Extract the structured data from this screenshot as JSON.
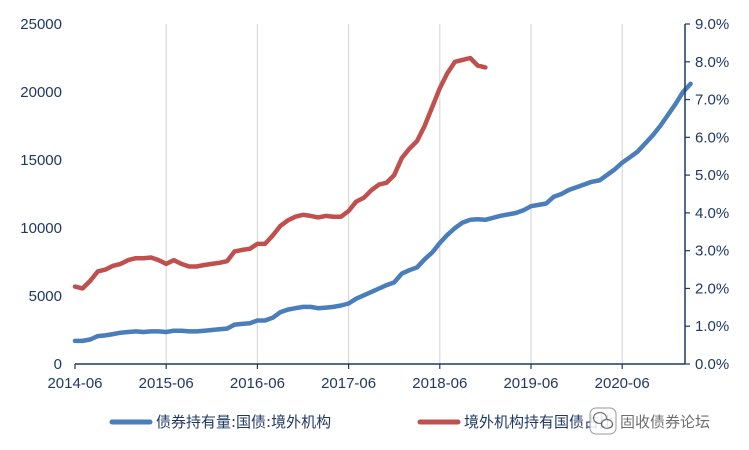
{
  "chart_data": {
    "type": "line",
    "x_ticks": [
      "2014-06",
      "2015-06",
      "2016-06",
      "2017-06",
      "2018-06",
      "2019-06",
      "2020-06"
    ],
    "y_left": {
      "min": 0,
      "max": 25000,
      "ticks": [
        "0",
        "5000",
        "10000",
        "15000",
        "20000",
        "25000"
      ]
    },
    "y_right": {
      "min": 0,
      "max": 0.09,
      "ticks": [
        "0.0%",
        "1.0%",
        "2.0%",
        "3.0%",
        "4.0%",
        "5.0%",
        "6.0%",
        "7.0%",
        "8.0%",
        "9.0%"
      ]
    },
    "grid": "vertical",
    "legend_position": "bottom",
    "series": [
      {
        "name": "债券持有量:国债:境外机构",
        "axis": "left",
        "color": "#4a7ebb",
        "x": [
          "2014-06",
          "2014-07",
          "2014-08",
          "2014-09",
          "2014-10",
          "2014-11",
          "2014-12",
          "2015-01",
          "2015-02",
          "2015-03",
          "2015-04",
          "2015-05",
          "2015-06",
          "2015-07",
          "2015-08",
          "2015-09",
          "2015-10",
          "2015-11",
          "2015-12",
          "2016-01",
          "2016-02",
          "2016-03",
          "2016-04",
          "2016-05",
          "2016-06",
          "2016-07",
          "2016-08",
          "2016-09",
          "2016-10",
          "2016-11",
          "2016-12",
          "2017-01",
          "2017-02",
          "2017-03",
          "2017-04",
          "2017-05",
          "2017-06",
          "2017-07",
          "2017-08",
          "2017-09",
          "2017-10",
          "2017-11",
          "2017-12",
          "2018-01",
          "2018-02",
          "2018-03",
          "2018-04",
          "2018-05",
          "2018-06",
          "2018-07",
          "2018-08",
          "2018-09",
          "2018-10",
          "2018-11",
          "2018-12",
          "2019-01",
          "2019-02",
          "2019-03",
          "2019-04",
          "2019-05",
          "2019-06",
          "2019-07",
          "2019-08",
          "2019-09",
          "2019-10",
          "2019-11",
          "2019-12",
          "2020-01",
          "2020-02",
          "2020-03",
          "2020-04",
          "2020-05",
          "2020-06",
          "2020-07",
          "2020-08",
          "2020-09",
          "2020-10",
          "2020-11",
          "2020-12",
          "2021-01",
          "2021-02",
          "2021-03"
        ],
        "values": [
          1700,
          1700,
          1800,
          2050,
          2100,
          2200,
          2300,
          2350,
          2400,
          2350,
          2400,
          2400,
          2350,
          2450,
          2450,
          2400,
          2400,
          2450,
          2500,
          2550,
          2600,
          2900,
          2950,
          3000,
          3200,
          3200,
          3400,
          3800,
          4000,
          4100,
          4200,
          4200,
          4100,
          4150,
          4200,
          4300,
          4450,
          4800,
          5050,
          5300,
          5550,
          5800,
          6000,
          6650,
          6900,
          7100,
          7700,
          8200,
          8900,
          9500,
          10000,
          10400,
          10600,
          10650,
          10600,
          10750,
          10900,
          11000,
          11100,
          11300,
          11600,
          11700,
          11800,
          12300,
          12500,
          12800,
          13000,
          13200,
          13400,
          13500,
          13900,
          14300,
          14800,
          15200,
          15600,
          16200,
          16800,
          17500,
          18300,
          19100,
          20000,
          20600
        ]
      },
      {
        "name": "境外机构持有国债占比",
        "axis": "right",
        "color": "#c0504d",
        "x": [
          "2014-06",
          "2014-07",
          "2014-08",
          "2014-09",
          "2014-10",
          "2014-11",
          "2014-12",
          "2015-01",
          "2015-02",
          "2015-03",
          "2015-04",
          "2015-05",
          "2015-06",
          "2015-07",
          "2015-08",
          "2015-09",
          "2015-10",
          "2015-11",
          "2015-12",
          "2016-01",
          "2016-02",
          "2016-03",
          "2016-04",
          "2016-05",
          "2016-06",
          "2016-07",
          "2016-08",
          "2016-09",
          "2016-10",
          "2016-11",
          "2016-12",
          "2017-01",
          "2017-02",
          "2017-03",
          "2017-04",
          "2017-05",
          "2017-06",
          "2017-07",
          "2017-08",
          "2017-09",
          "2017-10",
          "2017-11",
          "2017-12",
          "2018-01",
          "2018-02",
          "2018-03",
          "2018-04",
          "2018-05",
          "2018-06",
          "2018-07",
          "2018-08",
          "2018-09",
          "2018-10",
          "2018-11",
          "2018-12"
        ],
        "values": [
          0.0205,
          0.02,
          0.022,
          0.0245,
          0.025,
          0.026,
          0.0265,
          0.0275,
          0.028,
          0.028,
          0.0282,
          0.0275,
          0.0265,
          0.0275,
          0.0265,
          0.0258,
          0.0258,
          0.0262,
          0.0265,
          0.0268,
          0.0272,
          0.0298,
          0.0302,
          0.0305,
          0.0318,
          0.0318,
          0.034,
          0.0365,
          0.038,
          0.039,
          0.0395,
          0.0392,
          0.0388,
          0.0392,
          0.039,
          0.039,
          0.0405,
          0.043,
          0.044,
          0.046,
          0.0475,
          0.048,
          0.05,
          0.0545,
          0.057,
          0.059,
          0.063,
          0.068,
          0.073,
          0.077,
          0.08,
          0.0805,
          0.081,
          0.079,
          0.0785
        ]
      }
    ]
  },
  "legend": {
    "items": [
      {
        "label": "债券持有量:国债:境外机构",
        "color": "#4a7ebb"
      },
      {
        "label": "境外机构持有国债占比",
        "color": "#c0504d"
      }
    ]
  },
  "watermark": {
    "text": "固收债券论坛",
    "icon": "wechat-icon"
  }
}
